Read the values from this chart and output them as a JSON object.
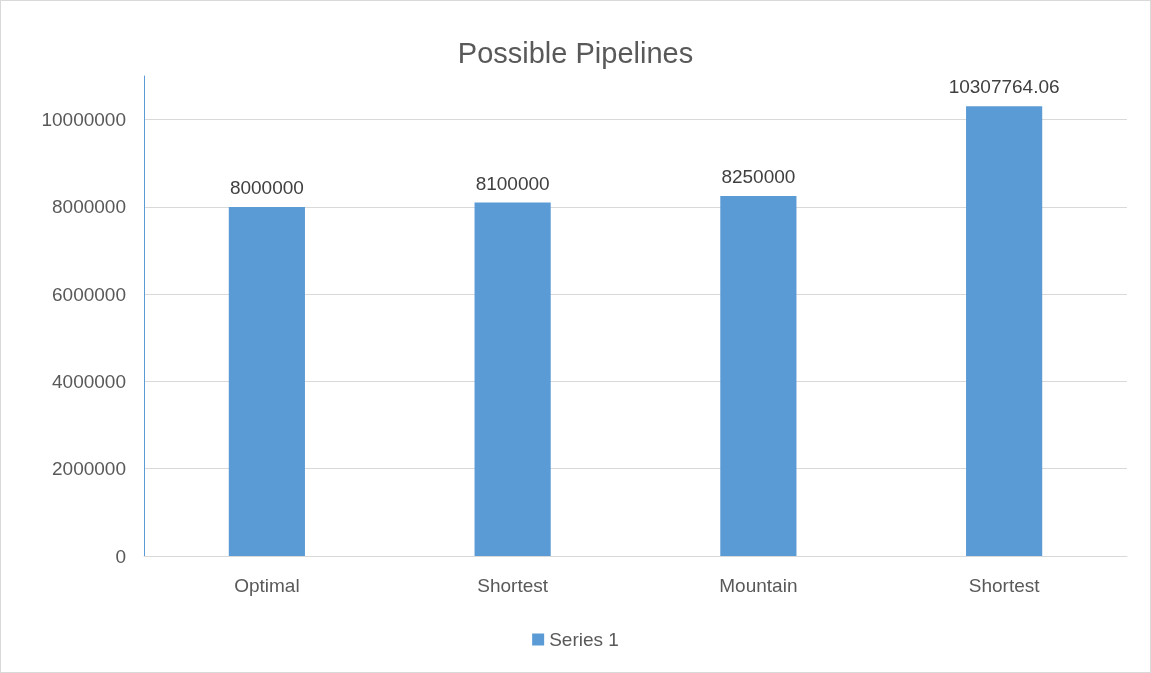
{
  "chart_data": {
    "type": "bar",
    "title": "Possible Pipelines",
    "categories": [
      "Optimal",
      "Shortest",
      "Mountain",
      "Shortest"
    ],
    "series": [
      {
        "name": "Series 1",
        "color": "#5b9bd5",
        "values": [
          8000000,
          8100000,
          8250000,
          10307764.06
        ]
      }
    ],
    "ylim": [
      0,
      11000000
    ],
    "yticks": [
      0,
      2000000,
      4000000,
      6000000,
      8000000,
      10000000
    ],
    "grid": "y",
    "legend": "bottom",
    "data_labels": true
  }
}
